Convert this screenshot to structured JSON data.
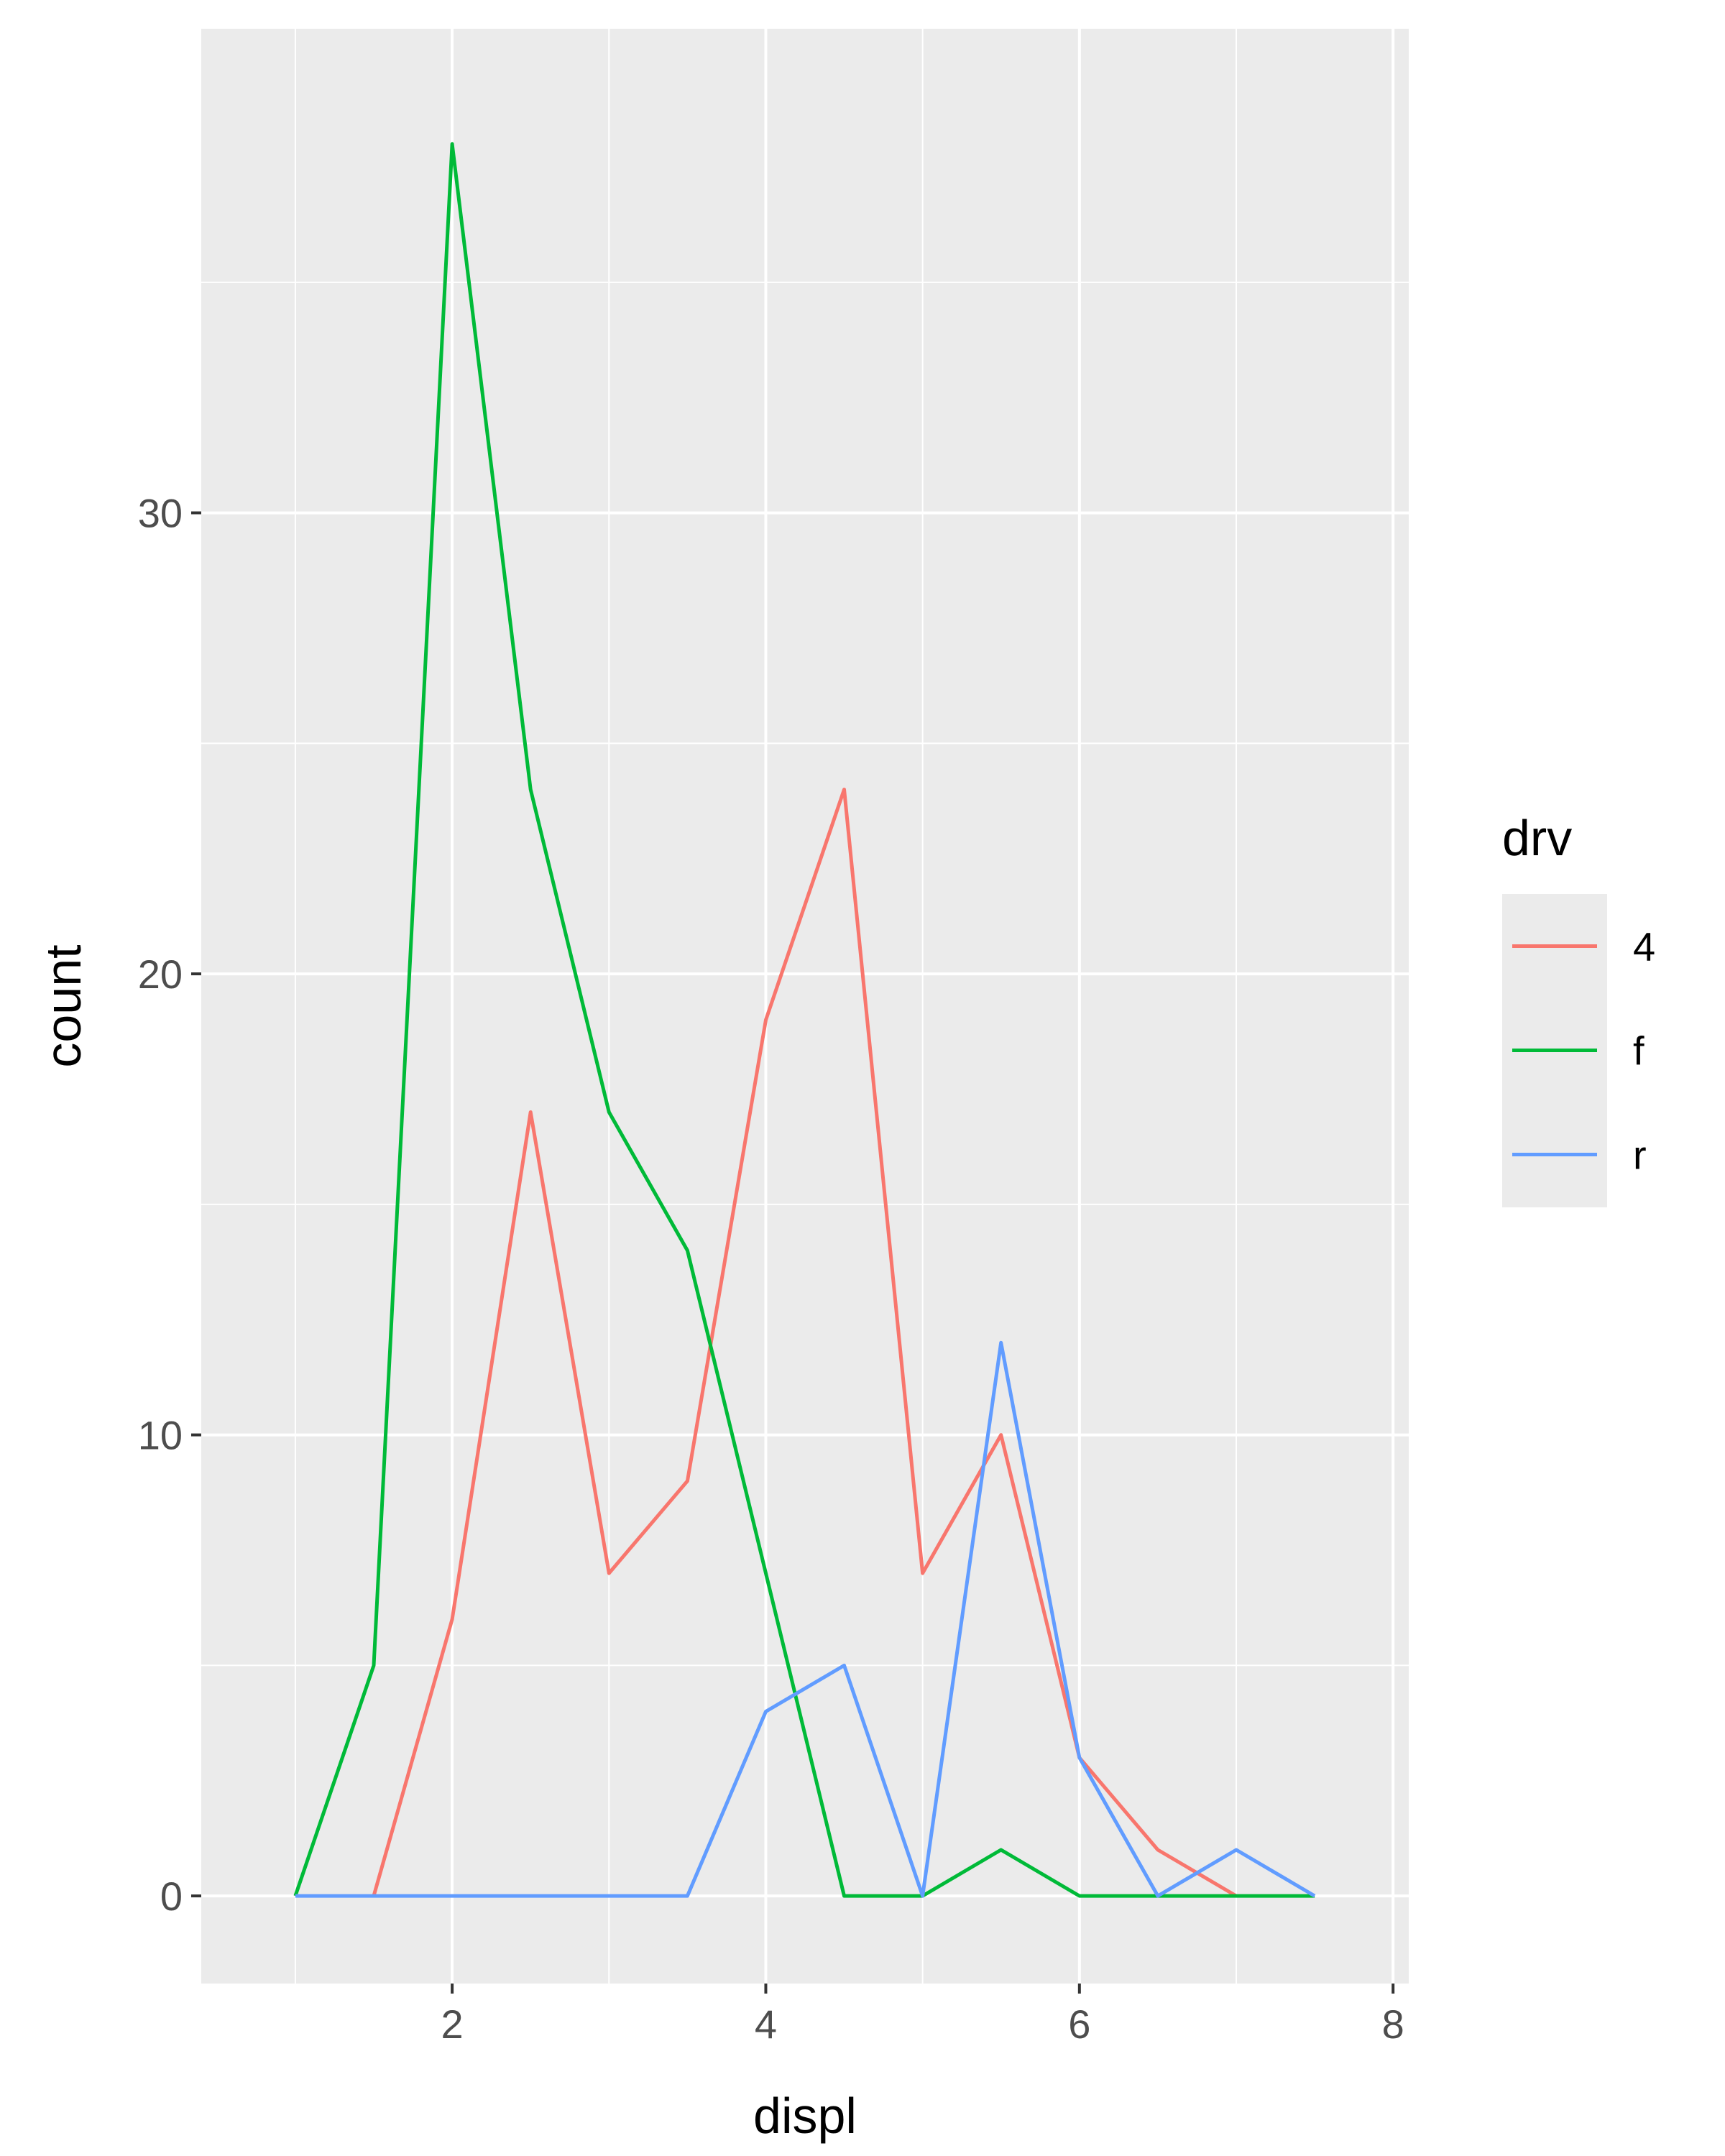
{
  "chart_data": {
    "type": "line",
    "title": "",
    "xlabel": "displ",
    "ylabel": "count",
    "xlim": [
      0.4,
      8.1
    ],
    "ylim": [
      -1.9,
      40.5
    ],
    "x_ticks": [
      2,
      4,
      6,
      8
    ],
    "y_ticks": [
      0,
      10,
      20,
      30
    ],
    "x_minor": [
      1,
      3,
      5,
      7
    ],
    "y_minor": [
      5,
      15,
      25,
      35
    ],
    "grid": true,
    "panel_background": "#ebebeb",
    "legend": {
      "title": "drv",
      "position": "right",
      "entries": [
        "4",
        "f",
        "r"
      ]
    },
    "x": [
      1.0,
      1.5,
      2.0,
      2.5,
      3.0,
      3.5,
      4.0,
      4.5,
      5.0,
      5.5,
      6.0,
      6.5,
      7.0,
      7.5
    ],
    "series": [
      {
        "name": "4",
        "color": "#f8766d",
        "x": [
          1.5,
          2.0,
          2.5,
          3.0,
          3.5,
          4.0,
          4.5,
          5.0,
          5.5,
          6.0,
          6.5,
          7.0
        ],
        "values": [
          0,
          6,
          17,
          7,
          9,
          19,
          24,
          7,
          10,
          3,
          1,
          0
        ]
      },
      {
        "name": "f",
        "color": "#00ba38",
        "x": [
          1.0,
          1.5,
          2.0,
          2.5,
          3.0,
          3.5,
          4.0,
          4.5,
          5.0,
          5.5,
          6.0,
          6.5,
          7.0,
          7.5
        ],
        "values": [
          0,
          5,
          38,
          24,
          17,
          14,
          7,
          0,
          0,
          1,
          0,
          0,
          0,
          0
        ]
      },
      {
        "name": "r",
        "color": "#619cff",
        "x": [
          1.0,
          1.5,
          2.0,
          2.5,
          3.0,
          3.5,
          4.0,
          4.5,
          5.0,
          5.5,
          6.0,
          6.5,
          7.0,
          7.5
        ],
        "values": [
          0,
          0,
          0,
          0,
          0,
          0,
          4,
          5,
          0,
          12,
          3,
          0,
          1,
          0
        ]
      }
    ]
  }
}
